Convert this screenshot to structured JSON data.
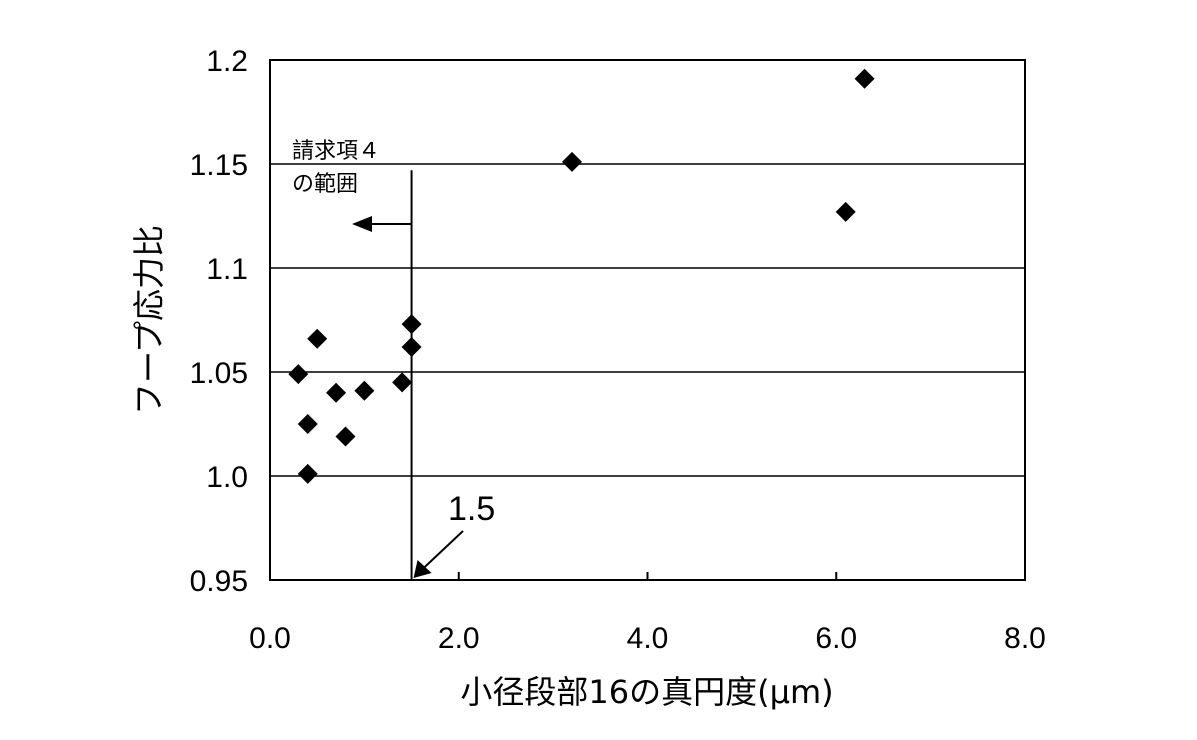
{
  "chart_data": {
    "type": "scatter",
    "title": "",
    "xlabel": "小径段部16の真円度(μm)",
    "ylabel": "フープ応力比",
    "xlim": [
      0.0,
      8.0
    ],
    "ylim": [
      0.95,
      1.2
    ],
    "x_ticks": [
      "0.0",
      "2.0",
      "4.0",
      "6.0",
      "8.0"
    ],
    "y_ticks": [
      "0.95",
      "1.0",
      "1.05",
      "1.1",
      "1.15",
      "1.2"
    ],
    "y_tick_values": [
      0.95,
      1.0,
      1.05,
      1.1,
      1.15,
      1.2
    ],
    "x_tick_values": [
      0.0,
      2.0,
      4.0,
      6.0,
      8.0
    ],
    "grid": "horizontal",
    "marker": "diamond",
    "marker_color": "#000000",
    "points": [
      {
        "x": 0.3,
        "y": 1.049
      },
      {
        "x": 0.4,
        "y": 1.025
      },
      {
        "x": 0.4,
        "y": 1.001
      },
      {
        "x": 0.5,
        "y": 1.066
      },
      {
        "x": 0.7,
        "y": 1.04
      },
      {
        "x": 0.8,
        "y": 1.019
      },
      {
        "x": 1.0,
        "y": 1.041
      },
      {
        "x": 1.4,
        "y": 1.045
      },
      {
        "x": 1.5,
        "y": 1.073
      },
      {
        "x": 1.5,
        "y": 1.062
      },
      {
        "x": 3.2,
        "y": 1.151
      },
      {
        "x": 6.1,
        "y": 1.127
      },
      {
        "x": 6.3,
        "y": 1.191
      }
    ],
    "threshold_x": 1.5,
    "annotations": {
      "range_line1": "請求項４",
      "range_line2": "の範囲",
      "threshold_label": "1.5"
    }
  }
}
